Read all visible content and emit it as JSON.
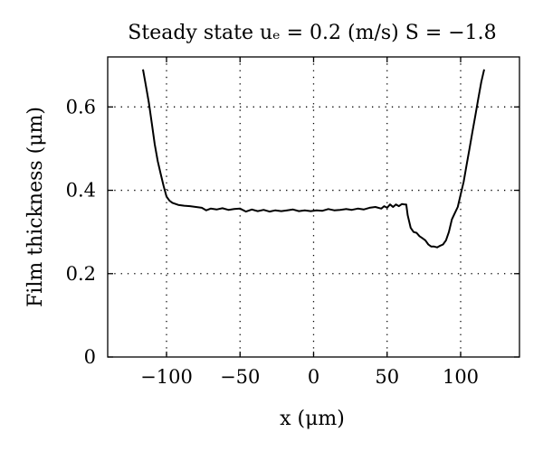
{
  "chart_data": {
    "type": "line",
    "title": "Steady state uₑ = 0.2 (m/s) S = −1.8",
    "xlabel": "x (μm)",
    "ylabel": "Film thickness (μm)",
    "xlim": [
      -140,
      140
    ],
    "ylim": [
      0,
      0.72
    ],
    "xticks": [
      -100,
      -50,
      0,
      50,
      100
    ],
    "xtick_labels": [
      "−100",
      "−50",
      "0",
      "50",
      "100"
    ],
    "yticks": [
      0,
      0.2,
      0.4,
      0.6
    ],
    "ytick_labels": [
      "0",
      "0.2",
      "0.4",
      "0.6"
    ],
    "grid": true,
    "series": [
      {
        "x": [
          -116,
          -114,
          -112,
          -110,
          -108,
          -106,
          -104,
          -102,
          -100,
          -98,
          -96,
          -92,
          -88,
          -84,
          -80,
          -76,
          -73,
          -70,
          -66,
          -62,
          -58,
          -54,
          -50,
          -46,
          -42,
          -38,
          -34,
          -30,
          -26,
          -22,
          -18,
          -14,
          -10,
          -6,
          -2,
          2,
          6,
          10,
          14,
          18,
          22,
          26,
          30,
          34,
          38,
          42,
          46,
          48,
          50,
          52,
          54,
          56,
          58,
          60,
          62,
          63,
          64,
          66,
          68,
          70,
          72,
          74,
          76,
          78,
          80,
          82,
          84,
          86,
          88,
          90,
          92,
          94,
          96,
          98,
          100,
          102,
          104,
          106,
          108,
          110,
          112,
          114,
          116
        ],
        "y": [
          0.69,
          0.65,
          0.61,
          0.56,
          0.51,
          0.47,
          0.44,
          0.41,
          0.385,
          0.375,
          0.37,
          0.365,
          0.363,
          0.362,
          0.36,
          0.358,
          0.352,
          0.356,
          0.354,
          0.357,
          0.353,
          0.355,
          0.356,
          0.349,
          0.354,
          0.35,
          0.353,
          0.349,
          0.352,
          0.35,
          0.352,
          0.354,
          0.35,
          0.352,
          0.35,
          0.352,
          0.351,
          0.355,
          0.352,
          0.353,
          0.355,
          0.353,
          0.356,
          0.354,
          0.358,
          0.36,
          0.356,
          0.362,
          0.358,
          0.366,
          0.36,
          0.366,
          0.362,
          0.367,
          0.366,
          0.366,
          0.34,
          0.31,
          0.3,
          0.298,
          0.29,
          0.285,
          0.28,
          0.27,
          0.265,
          0.265,
          0.263,
          0.267,
          0.27,
          0.28,
          0.3,
          0.33,
          0.345,
          0.36,
          0.39,
          0.42,
          0.46,
          0.5,
          0.54,
          0.58,
          0.62,
          0.66,
          0.69
        ]
      }
    ]
  }
}
